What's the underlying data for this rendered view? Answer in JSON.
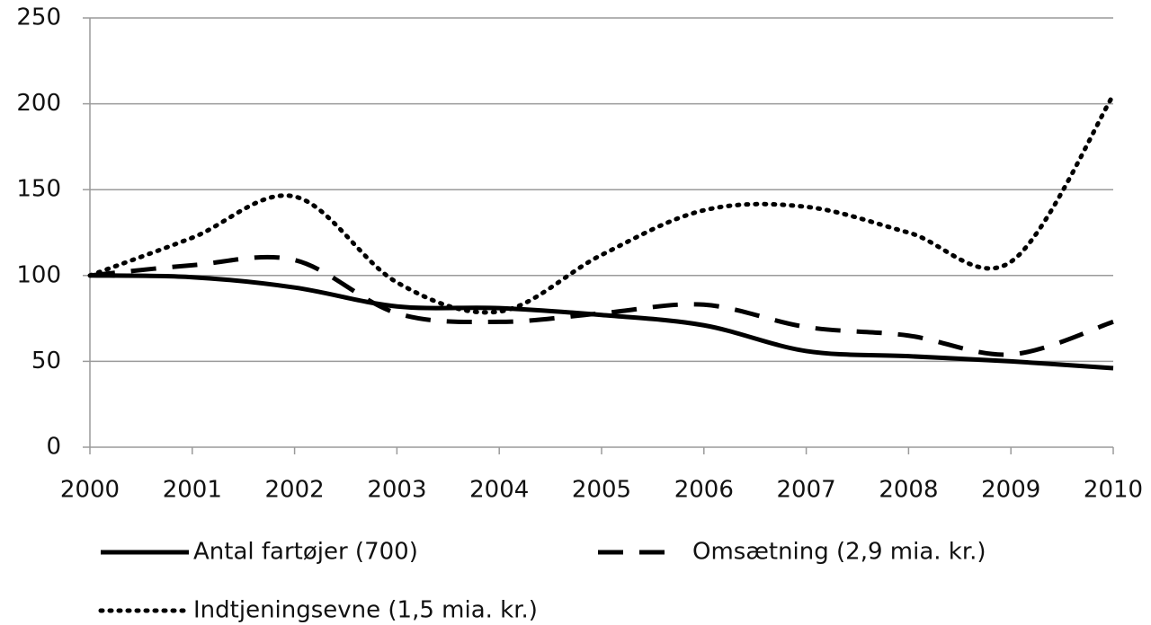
{
  "chart_data": {
    "type": "line",
    "x": [
      2000,
      2001,
      2002,
      2003,
      2004,
      2005,
      2006,
      2007,
      2008,
      2009,
      2010
    ],
    "xlim": [
      2000,
      2010
    ],
    "xticks": [
      2000,
      2001,
      2002,
      2003,
      2004,
      2005,
      2006,
      2007,
      2008,
      2009,
      2010
    ],
    "ylim": [
      0,
      250
    ],
    "yticks": [
      0,
      50,
      100,
      150,
      200,
      250
    ],
    "grid": true,
    "legend": "bottom",
    "series": [
      {
        "name": "Antal fartøjer (700)",
        "color": "#000000",
        "dash": "solid",
        "values": [
          100,
          99,
          93,
          82,
          81,
          77,
          71,
          56,
          53,
          50,
          46
        ]
      },
      {
        "name": "Omsætning  (2,9 mia. kr.)",
        "color": "#000000",
        "dash": "dashed",
        "values": [
          100,
          106,
          109,
          78,
          73,
          78,
          83,
          70,
          65,
          54,
          73
        ]
      },
      {
        "name": "Indtjeningsevne (1,5 mia. kr.)",
        "color": "#000000",
        "dash": "dotted",
        "values": [
          100,
          122,
          146,
          96,
          79,
          112,
          138,
          140,
          125,
          108,
          205
        ]
      }
    ]
  }
}
